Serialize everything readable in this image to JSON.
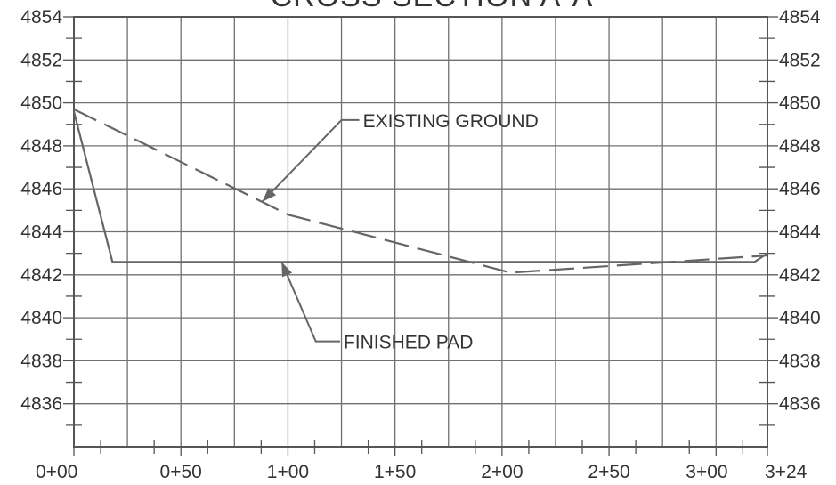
{
  "chart_data": {
    "type": "line",
    "title": "CROSS SECTION A-A",
    "xlabel": "",
    "ylabel": "",
    "x_units": "feet (station)",
    "xlim": [
      0,
      324
    ],
    "ylim": [
      4834,
      4854
    ],
    "x_grid_interval": 25,
    "y_grid_interval": 2,
    "grid": true,
    "legend": "none",
    "x_tick_values": [
      0,
      50,
      100,
      150,
      200,
      250,
      300,
      324
    ],
    "x_tick_labels": [
      "0+00",
      "0+50",
      "1+00",
      "1+50",
      "2+00",
      "2+50",
      "3+00",
      "3+24"
    ],
    "y_tick_values": [
      4836,
      4838,
      4840,
      4842,
      4844,
      4846,
      4848,
      4850,
      4852,
      4854
    ],
    "y_tick_labels": [
      "4836",
      "4838",
      "4840",
      "4842",
      "4844",
      "4846",
      "4848",
      "4850",
      "4852",
      "4854"
    ],
    "series": [
      {
        "name": "FINISHED PAD",
        "style": "solid",
        "color": "#666666",
        "x": [
          0,
          18,
          318,
          324
        ],
        "y": [
          4849.6,
          4842.6,
          4842.6,
          4843.0
        ]
      },
      {
        "name": "EXISTING GROUND",
        "style": "dashed",
        "color": "#666666",
        "x": [
          0,
          100,
          204,
          324
        ],
        "y": [
          4849.7,
          4844.8,
          4842.1,
          4842.9
        ]
      }
    ],
    "annotations": [
      {
        "text": "EXISTING GROUND",
        "text_x": 135,
        "text_y": 4849.2,
        "elbow_x": 125,
        "elbow_y": 4849.2,
        "arrow_x": 88,
        "arrow_y": 4845.4
      },
      {
        "text": "FINISHED PAD",
        "text_x": 126,
        "text_y": 4838.9,
        "elbow_x": 113,
        "elbow_y": 4838.9,
        "arrow_x": 97,
        "arrow_y": 4842.6
      }
    ],
    "colors": {
      "grid": "#707070",
      "axis": "#555555",
      "line": "#666666",
      "text": "#333333"
    }
  }
}
